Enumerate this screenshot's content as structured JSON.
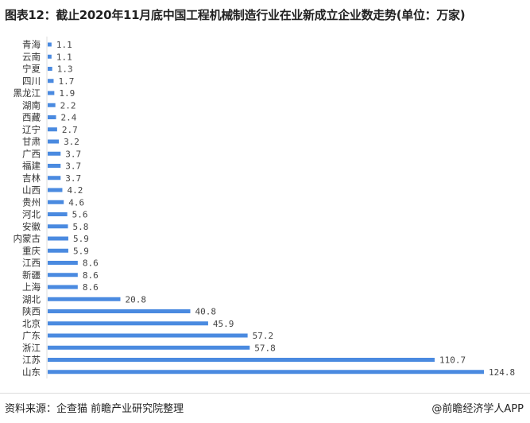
{
  "title": "图表12：截止2020年11月底中国工程机械制造行业在业新成立企业数走势(单位：万家)",
  "footer": {
    "source": "资料来源：企查猫 前瞻产业研究院整理",
    "brand": "@前瞻经济学人APP"
  },
  "watermark": "前瞻产业研究院",
  "chart_data": {
    "type": "bar",
    "orientation": "horizontal",
    "title": "图表12：截止2020年11月底中国工程机械制造行业在业新成立企业数走势(单位：万家)",
    "categories": [
      "青海",
      "云南",
      "宁夏",
      "四川",
      "黑龙江",
      "湖南",
      "西藏",
      "辽宁",
      "甘肃",
      "广西",
      "福建",
      "吉林",
      "山西",
      "贵州",
      "河北",
      "安徽",
      "内蒙古",
      "重庆",
      "江西",
      "新疆",
      "上海",
      "湖北",
      "陕西",
      "北京",
      "广东",
      "浙江",
      "江苏",
      "山东"
    ],
    "values": [
      1.1,
      1.1,
      1.3,
      1.7,
      1.9,
      2.2,
      2.4,
      2.7,
      3.2,
      3.7,
      3.7,
      3.7,
      4.2,
      4.6,
      5.6,
      5.8,
      5.9,
      5.9,
      8.6,
      8.6,
      8.6,
      20.8,
      40.8,
      45.9,
      57.2,
      57.8,
      110.7,
      124.8
    ],
    "value_labels": [
      "1.1",
      "1.1",
      "1.3",
      "1.7",
      "1.9",
      "2.2",
      "2.4",
      "2.7",
      "3.2",
      "3.7",
      "3.7",
      "3.7",
      "4.2",
      "4.6",
      "5.6",
      "5.8",
      "5.9",
      "5.9",
      "8.6",
      "8.6",
      "8.6",
      "20.8",
      "40.8",
      "45.9",
      "57.2",
      "57.8",
      "110.7",
      "124.8"
    ],
    "unit": "万家",
    "grid": false,
    "color": "#4a8ae0"
  }
}
